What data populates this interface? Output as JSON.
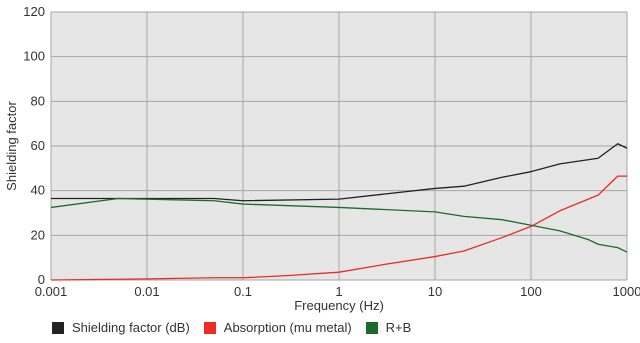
{
  "chart_data": {
    "type": "line",
    "xlabel": "Frequency (Hz)",
    "ylabel": "Shielding factor",
    "xscale": "log",
    "xlim": [
      0.001,
      1000
    ],
    "ylim": [
      0,
      120
    ],
    "x_ticks": [
      "0.001",
      "0.01",
      "0.1",
      "1",
      "10",
      "100",
      "1000"
    ],
    "y_ticks": [
      "0",
      "20",
      "40",
      "60",
      "80",
      "100",
      "120"
    ],
    "grid": true,
    "legend_position": "bottom",
    "plot_background": "#e6e6e6",
    "series": [
      {
        "name": "Shielding factor (dB)",
        "color": "#222222",
        "points": [
          [
            0.001,
            36.5
          ],
          [
            0.005,
            36.5
          ],
          [
            0.05,
            36.5
          ],
          [
            0.1,
            35.5
          ],
          [
            1,
            36.2
          ],
          [
            3,
            38.5
          ],
          [
            10,
            41
          ],
          [
            20,
            42
          ],
          [
            50,
            46
          ],
          [
            100,
            48.5
          ],
          [
            200,
            52
          ],
          [
            500,
            54.5
          ],
          [
            800,
            61
          ],
          [
            1000,
            59
          ]
        ]
      },
      {
        "name": "Absorption (mu metal)",
        "color": "#ee2a24",
        "points": [
          [
            0.001,
            0
          ],
          [
            0.01,
            0.5
          ],
          [
            0.05,
            1
          ],
          [
            0.1,
            1
          ],
          [
            0.3,
            2
          ],
          [
            1,
            3.5
          ],
          [
            3,
            7
          ],
          [
            10,
            10.5
          ],
          [
            20,
            13
          ],
          [
            50,
            19
          ],
          [
            100,
            24
          ],
          [
            200,
            31
          ],
          [
            500,
            38
          ],
          [
            800,
            46.5
          ],
          [
            1000,
            46.5
          ]
        ]
      },
      {
        "name": "R+B",
        "color": "#1e6a2e",
        "points": [
          [
            0.001,
            32.5
          ],
          [
            0.005,
            36.5
          ],
          [
            0.05,
            35.5
          ],
          [
            0.1,
            34
          ],
          [
            1,
            32.5
          ],
          [
            10,
            30.5
          ],
          [
            20,
            28.5
          ],
          [
            50,
            27
          ],
          [
            100,
            24.5
          ],
          [
            200,
            22
          ],
          [
            400,
            18
          ],
          [
            500,
            16
          ],
          [
            800,
            14.5
          ],
          [
            1000,
            12.5
          ]
        ]
      }
    ]
  }
}
